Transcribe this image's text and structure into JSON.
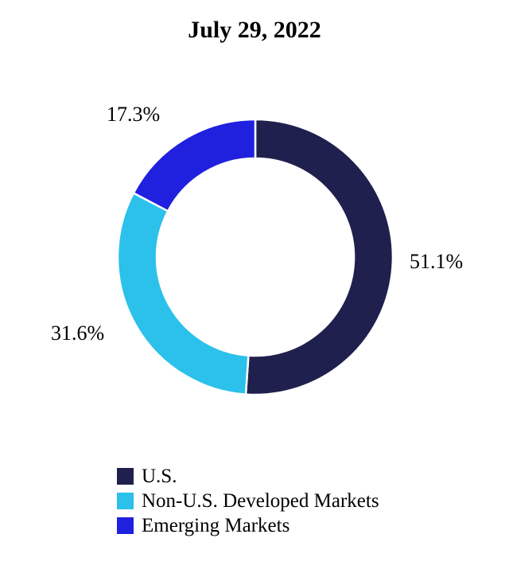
{
  "chart_data": {
    "type": "pie",
    "subtype": "donut",
    "title": "July 29, 2022",
    "unit": "%",
    "start_angle_deg_from_top": 0,
    "direction": "clockwise",
    "legend_position": "bottom-left",
    "background_color": "#ffffff",
    "separator_color": "#ffffff",
    "segments": [
      {
        "label": "U.S.",
        "value": 51.1,
        "pct_label": "51.1%",
        "color": "#20204E"
      },
      {
        "label": "Non-U.S. Developed Markets",
        "value": 31.6,
        "pct_label": "31.6%",
        "color": "#2BC1EA"
      },
      {
        "label": "Emerging Markets",
        "value": 17.3,
        "pct_label": "17.3%",
        "color": "#2020DF"
      }
    ]
  }
}
